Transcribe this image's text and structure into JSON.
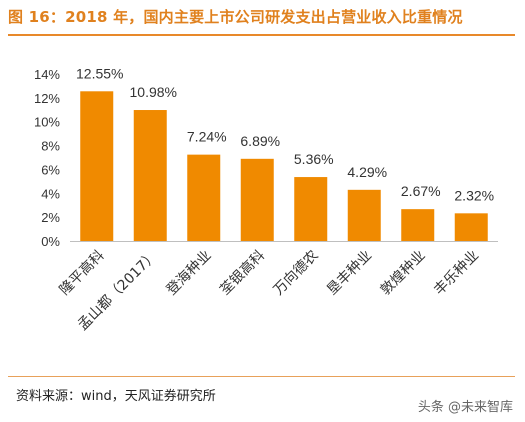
{
  "title": "图 16：2018 年，国内主要上市公司研发支出占营业收入比重情况",
  "source": "资料来源：wind，天风证券研究所",
  "watermark": "头条 @未来智库",
  "colors": {
    "bar": "#f08a00",
    "title": "#e0811e",
    "axis": "#bfbfbf"
  },
  "chart_data": {
    "type": "bar",
    "categories": [
      "隆平高科",
      "孟山都（2017）",
      "登海种业",
      "荃银高科",
      "万向德农",
      "垦丰种业",
      "敦煌种业",
      "丰乐种业"
    ],
    "values": [
      12.55,
      10.98,
      7.24,
      6.89,
      5.36,
      4.29,
      2.67,
      2.32
    ],
    "data_labels": [
      "12.55%",
      "10.98%",
      "7.24%",
      "6.89%",
      "5.36%",
      "4.29%",
      "2.67%",
      "2.32%"
    ],
    "yticks": [
      "0%",
      "2%",
      "4%",
      "6%",
      "8%",
      "10%",
      "12%",
      "14%"
    ],
    "ytick_values": [
      0,
      2,
      4,
      6,
      8,
      10,
      12,
      14
    ],
    "ylim": [
      0,
      14
    ],
    "grid": false,
    "legend": "none"
  }
}
